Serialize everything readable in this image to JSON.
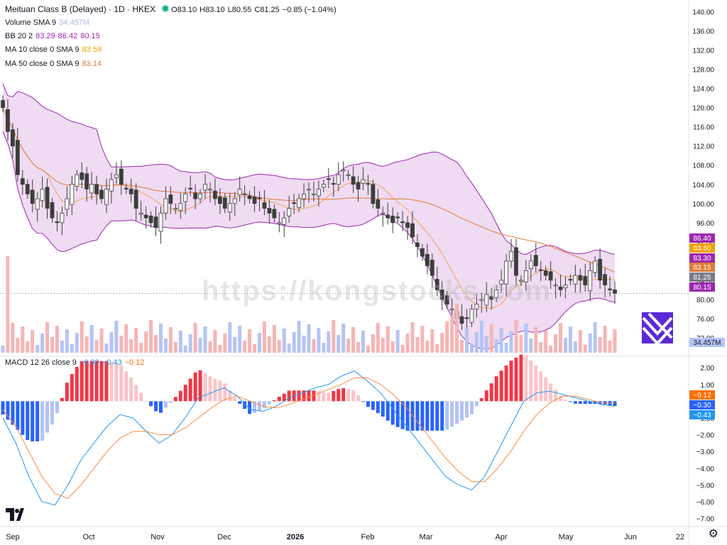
{
  "header": {
    "symbol_title": "Meituan Class B (Delayed) · 1D · HKEX",
    "ohlc": {
      "o": "O83.10",
      "h": "H83.10",
      "l": "L80.55",
      "c": "C81.25",
      "chg": "−0.85 (−1.04%)"
    },
    "volume_label": "Volume SMA 9",
    "volume_value": "34.457M",
    "bb_label": "BB 20 2",
    "bb_values": [
      "83.29",
      "86.42",
      "80.15"
    ],
    "ma10_label": "MA 10 close 0 SMA 9",
    "ma10_value": "83.59",
    "ma50_label": "MA 50 close 0 SMA 9",
    "ma50_value": "83.14",
    "macd_label": "MACD 12 26 close 9",
    "macd_values": [
      "−0.30",
      "−0.43",
      "−0.12"
    ]
  },
  "watermark": "https://kongstocks.com",
  "colors": {
    "up_candle": "#ffffff",
    "down_candle": "#3d3d3d",
    "bb_fill": "#e1bee7",
    "bb_line": "#9c27b0",
    "ma10": "#f2a35a",
    "ma50": "#e07b39",
    "vol_up": "#b5c4f5",
    "vol_down": "#f7b5b5",
    "macd_line": "#2196f3",
    "signal_line": "#ff8a3d",
    "hist_pos_strong": "#f23645",
    "hist_pos_weak": "#fbc4c8",
    "hist_neg_strong": "#2962ff",
    "hist_neg_weak": "#b2c3f5"
  },
  "price_axis": [
    "140.00",
    "136.00",
    "132.00",
    "128.00",
    "124.00",
    "120.00",
    "116.00",
    "112.00",
    "108.00",
    "104.00",
    "100.00",
    "96.00",
    "92.00",
    "88.00",
    "84.00",
    "80.00",
    "76.00",
    "72.00"
  ],
  "price_badges": [
    {
      "value": "86.40",
      "color": "#9c27b0"
    },
    {
      "value": "83.60",
      "color": "#f2a000"
    },
    {
      "value": "83.30",
      "color": "#9c27b0"
    },
    {
      "value": "83.15",
      "color": "#e07b39"
    },
    {
      "value": "81.25",
      "color": "#787b86"
    },
    {
      "value": "80.15",
      "color": "#9c27b0"
    }
  ],
  "volume_badge": "34.457M",
  "macd_axis": [
    "2.00",
    "1.00",
    "−1.00",
    "−2.00",
    "−3.00",
    "−4.00",
    "−5.00",
    "−6.00",
    "−7.00"
  ],
  "macd_badges": [
    {
      "value": "−0.12",
      "color": "#ff6d00"
    },
    {
      "value": "−0.30",
      "color": "#2962ff"
    },
    {
      "value": "−0.43",
      "color": "#2196f3"
    }
  ],
  "time_axis": [
    "Sep",
    "Oct",
    "Nov",
    "Dec",
    "2026",
    "Feb",
    "Mar",
    "Apr",
    "May",
    "Jun",
    "22"
  ],
  "chart_data": {
    "type": "candlestick",
    "title": "Meituan Class B (Delayed) · 1D · HKEX",
    "ylim": [
      68,
      142
    ],
    "close_series_approx": [
      120,
      115,
      112,
      106,
      104,
      102,
      100,
      101,
      103,
      99,
      97,
      96,
      98,
      101,
      104,
      106,
      105,
      103,
      104,
      102,
      101,
      103,
      105,
      106,
      104,
      103,
      102,
      99,
      98,
      97,
      96,
      95,
      98,
      101,
      100,
      99,
      100,
      102,
      103,
      101,
      102,
      104,
      103,
      101,
      100,
      99,
      100,
      101,
      103,
      102,
      101,
      100,
      101,
      99,
      98,
      97,
      96,
      97,
      99,
      100,
      101,
      102,
      103,
      102,
      103,
      104,
      105,
      104,
      106,
      107,
      106,
      104,
      103,
      105,
      104,
      100,
      99,
      98,
      97,
      96,
      97,
      96,
      95,
      93,
      91,
      89,
      87,
      85,
      82,
      80,
      79,
      78,
      76,
      75,
      76,
      78,
      79,
      80,
      81,
      80,
      82,
      84,
      88,
      90,
      85,
      84,
      86,
      88,
      87,
      86,
      85,
      84,
      83,
      82,
      83,
      84,
      85,
      84,
      83,
      86,
      88,
      84,
      83,
      82,
      81.25
    ],
    "macd_approx": [
      -1.0,
      -2.5,
      -4.5,
      -6.0,
      -6.2,
      -5.0,
      -3.5,
      -2.5,
      -1.5,
      -0.8,
      -1.0,
      -1.8,
      -2.5,
      -2.0,
      -1.0,
      0.2,
      0.5,
      0.8,
      0.3,
      -0.5,
      -0.6,
      -0.3,
      0.2,
      0.5,
      0.8,
      1.0,
      1.5,
      1.8,
      1.2,
      0.5,
      -0.5,
      -1.5,
      -2.5,
      -3.5,
      -4.5,
      -5.0,
      -5.3,
      -4.5,
      -3.0,
      -1.5,
      0,
      0.5,
      0.6,
      0.4,
      0.2,
      0,
      -0.2,
      -0.3
    ],
    "signal_approx": [
      -0.5,
      -1.5,
      -3.0,
      -4.5,
      -5.5,
      -5.8,
      -5.0,
      -4.0,
      -3.0,
      -2.2,
      -1.8,
      -1.8,
      -2.0,
      -2.0,
      -1.6,
      -1.0,
      -0.4,
      0.1,
      0.3,
      0.0,
      -0.3,
      -0.4,
      -0.2,
      0.1,
      0.4,
      0.7,
      1.0,
      1.4,
      1.4,
      1.0,
      0.4,
      -0.4,
      -1.4,
      -2.4,
      -3.4,
      -4.2,
      -4.8,
      -4.8,
      -4.0,
      -3.0,
      -1.8,
      -0.8,
      -0.1,
      0.3,
      0.3,
      0.1,
      -0.1,
      -0.12
    ]
  }
}
